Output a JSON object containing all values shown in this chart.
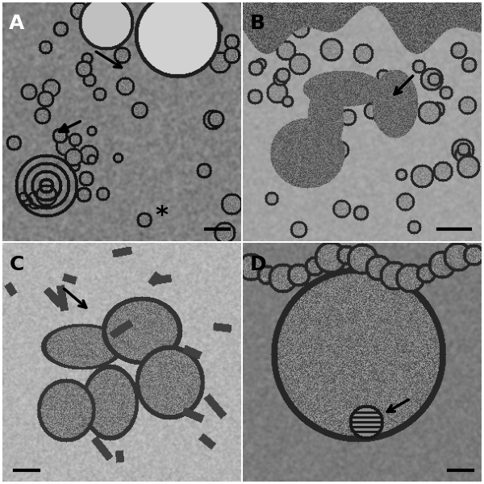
{
  "figure_size": [
    6.0,
    6.0
  ],
  "dpi": 100,
  "background_color": "#ffffff",
  "border_color": "#000000",
  "panels": [
    "A",
    "B",
    "C",
    "D"
  ],
  "label_fontsize": 18,
  "label_color": "#ffffff",
  "label_color_CD": "#000000",
  "grid_color": "#555555",
  "seed_A": 42,
  "seed_B": 123,
  "seed_C": 77,
  "seed_D": 99
}
